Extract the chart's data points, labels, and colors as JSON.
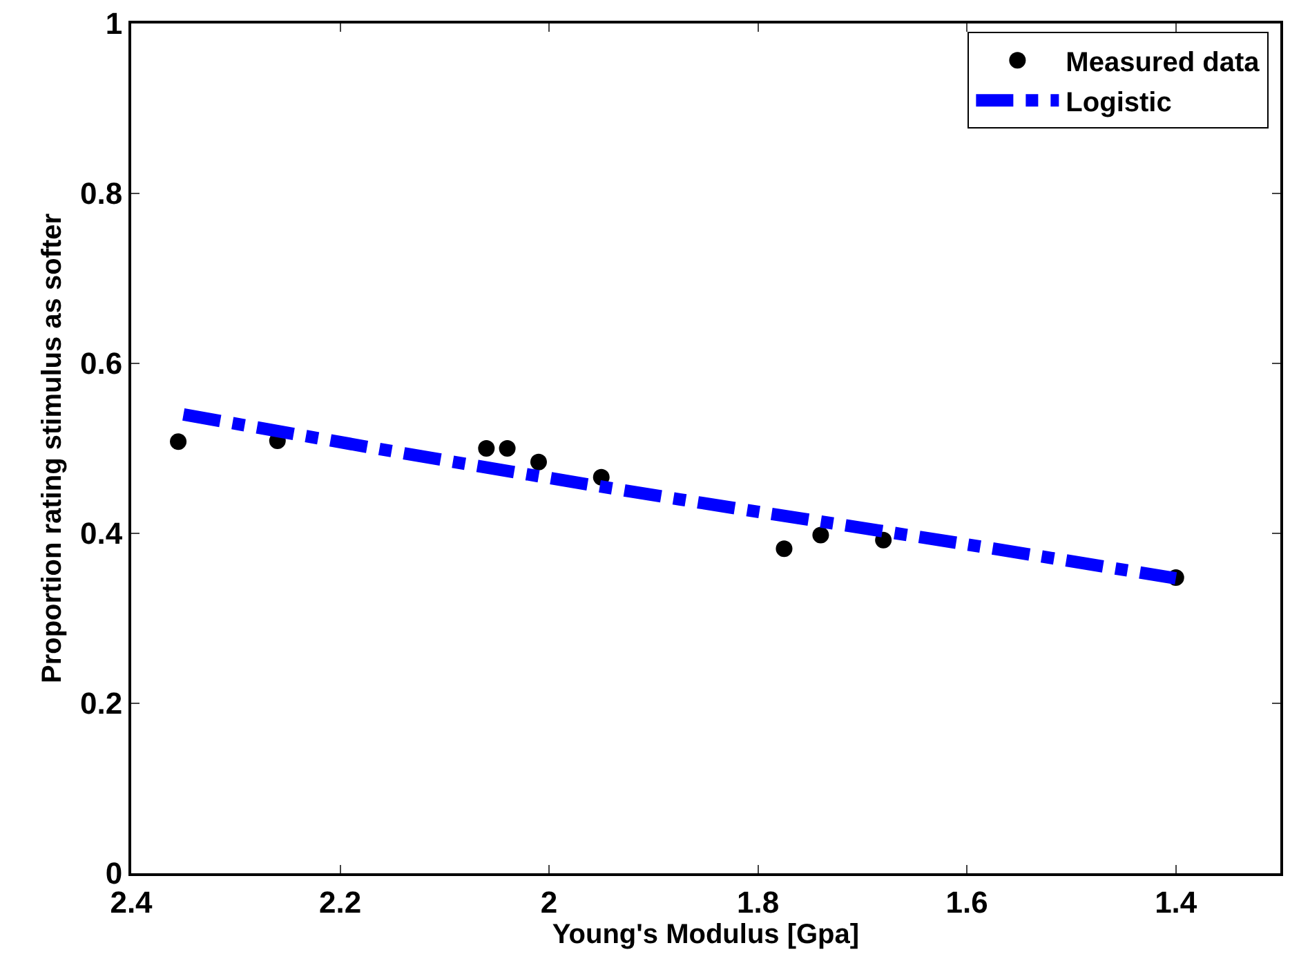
{
  "chart_data": {
    "type": "scatter",
    "xlabel": "Young's Modulus [Gpa]",
    "ylabel": "Proportion rating stimulus as softer",
    "xlim": [
      2.4,
      1.3
    ],
    "xticks": [
      2.4,
      2.2,
      2,
      1.8,
      1.6,
      1.4
    ],
    "ylim": [
      0,
      1
    ],
    "yticks": [
      0,
      0.2,
      0.4,
      0.6,
      0.8,
      1
    ],
    "legend": "top right",
    "series": [
      {
        "name": "Measured data",
        "color": "#000000",
        "marker": "circle",
        "x": [
          2.355,
          2.26,
          2.06,
          2.04,
          2.01,
          1.95,
          1.775,
          1.74,
          1.68,
          1.4
        ],
        "values": [
          0.508,
          0.509,
          0.5,
          0.5,
          0.484,
          0.466,
          0.382,
          0.398,
          0.392,
          0.348
        ]
      },
      {
        "name": "Logistic",
        "type": "line",
        "color": "#0000ff",
        "line_style": "dashed",
        "x": [
          2.35,
          2.1,
          1.875,
          1.6,
          1.4
        ],
        "values": [
          0.54,
          0.486,
          0.44,
          0.387,
          0.347
        ]
      }
    ]
  }
}
